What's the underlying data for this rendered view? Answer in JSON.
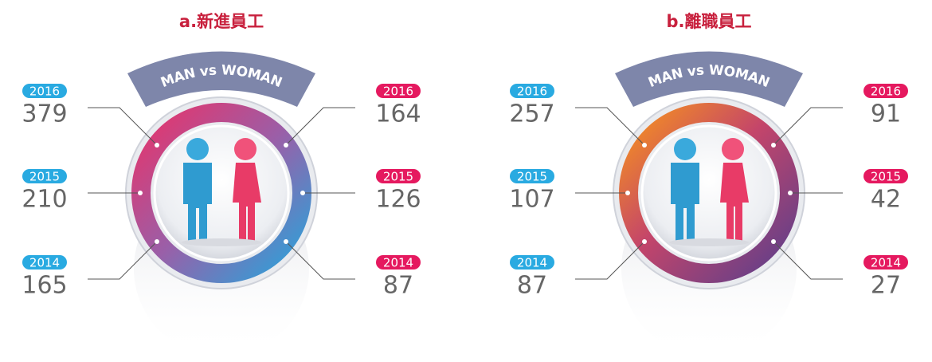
{
  "panels": [
    {
      "title": "a.新進員工",
      "badge": "MAN vs WOMAN",
      "men": [
        {
          "year": 2016,
          "value": 379
        },
        {
          "year": 2015,
          "value": 210
        },
        {
          "year": 2014,
          "value": 165
        }
      ],
      "women": [
        {
          "year": 2016,
          "value": 164
        },
        {
          "year": 2015,
          "value": 126
        },
        {
          "year": 2014,
          "value": 87
        }
      ]
    },
    {
      "title": "b.離職員工",
      "badge": "MAN vs WOMAN",
      "men": [
        {
          "year": 2016,
          "value": 257
        },
        {
          "year": 2015,
          "value": 107
        },
        {
          "year": 2014,
          "value": 87
        }
      ],
      "women": [
        {
          "year": 2016,
          "value": 91
        },
        {
          "year": 2015,
          "value": 42
        },
        {
          "year": 2014,
          "value": 27
        }
      ]
    }
  ]
}
